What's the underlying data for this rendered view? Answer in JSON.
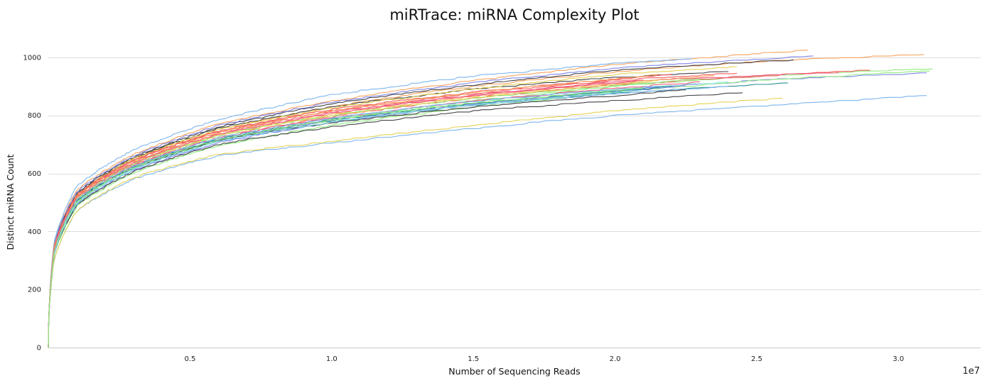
{
  "chart_data": {
    "type": "line",
    "title": "miRTrace: miRNA Complexity Plot",
    "xlabel": "Number of Sequencing Reads",
    "ylabel": "Distinct miRNA Count",
    "x_exponent_label": "1e7",
    "xlim": [
      0,
      32900000
    ],
    "ylim": [
      0,
      1100
    ],
    "x_ticks": [
      5000000,
      10000000,
      15000000,
      20000000,
      25000000,
      30000000
    ],
    "x_tick_labels": [
      "0.5",
      "1.0",
      "1.5",
      "2.0",
      "2.5",
      "3.0"
    ],
    "y_ticks": [
      0,
      200,
      400,
      600,
      800,
      1000
    ],
    "y_tick_labels": [
      "0",
      "200",
      "400",
      "600",
      "800",
      "1000"
    ],
    "grid": "horizontal",
    "legend": "none",
    "colors": {
      "gridline": "#dddddd",
      "axis": "#cccccc"
    },
    "series": [
      {
        "color": "#7cb5ec",
        "x": [
          0,
          200000,
          1000000,
          3000000,
          6000000,
          10000000,
          15000000,
          20000000,
          25000000,
          31000000
        ],
        "y": [
          0,
          300,
          470,
          580,
          660,
          705,
          755,
          800,
          830,
          868
        ]
      },
      {
        "color": "#f7a35c",
        "x": [
          0,
          200000,
          1000000,
          3000000,
          6000000,
          10000000,
          15000000,
          20000000,
          25000000,
          30900000
        ],
        "y": [
          0,
          340,
          520,
          650,
          750,
          830,
          900,
          950,
          985,
          1010
        ]
      },
      {
        "color": "#f7a35c",
        "x": [
          0,
          200000,
          1000000,
          3000000,
          6000000,
          10000000,
          15000000,
          20000000,
          26800000
        ],
        "y": [
          0,
          360,
          540,
          665,
          770,
          850,
          920,
          975,
          1025
        ]
      },
      {
        "color": "#434348",
        "x": [
          0,
          200000,
          1000000,
          3000000,
          6000000,
          10000000,
          15000000,
          20000000,
          26300000
        ],
        "y": [
          0,
          350,
          530,
          655,
          760,
          840,
          905,
          955,
          992
        ]
      },
      {
        "color": "#8085e9",
        "x": [
          0,
          200000,
          1000000,
          3000000,
          6000000,
          10000000,
          15000000,
          20000000,
          27000000
        ],
        "y": [
          0,
          355,
          535,
          660,
          765,
          845,
          912,
          962,
          1005
        ]
      },
      {
        "color": "#8085e9",
        "x": [
          0,
          200000,
          1000000,
          3000000,
          6000000,
          10000000,
          15000000,
          20000000,
          25000000,
          31000000
        ],
        "y": [
          0,
          320,
          490,
          610,
          705,
          775,
          840,
          885,
          920,
          945
        ]
      },
      {
        "color": "#90ed7d",
        "x": [
          0,
          200000,
          1000000,
          3000000,
          6000000,
          10000000,
          15000000,
          20000000,
          25000000,
          31200000
        ],
        "y": [
          0,
          320,
          495,
          615,
          712,
          785,
          850,
          900,
          935,
          960
        ]
      },
      {
        "color": "#90ed7d",
        "x": [
          0,
          200000,
          1000000,
          3000000,
          6000000,
          10000000,
          15000000,
          20000000,
          25000000,
          31100000
        ],
        "y": [
          0,
          315,
          485,
          600,
          695,
          765,
          828,
          880,
          920,
          952
        ]
      },
      {
        "color": "#e4d354",
        "x": [
          0,
          200000,
          1000000,
          3000000,
          6000000,
          10000000,
          15000000,
          20000000,
          25900000
        ],
        "y": [
          0,
          300,
          470,
          585,
          665,
          710,
          765,
          815,
          860
        ]
      },
      {
        "color": "#f45b5b",
        "x": [
          0,
          200000,
          1000000,
          3000000,
          6000000,
          10000000,
          15000000,
          20000000,
          25000000,
          29000000
        ],
        "y": [
          0,
          330,
          505,
          630,
          725,
          795,
          860,
          905,
          935,
          955
        ]
      },
      {
        "color": "#f15c80",
        "x": [
          0,
          200000,
          1000000,
          3000000,
          6000000,
          10000000,
          15000000,
          20000000,
          27900000
        ],
        "y": [
          0,
          340,
          520,
          640,
          740,
          810,
          870,
          915,
          948
        ]
      },
      {
        "color": "#7cb5ec",
        "x": [
          0,
          200000,
          1000000,
          3000000,
          6000000,
          10000000,
          15000000,
          20000000,
          22700000
        ],
        "y": [
          0,
          360,
          555,
          680,
          785,
          870,
          935,
          978,
          995
        ]
      },
      {
        "color": "#2b908f",
        "x": [
          0,
          200000,
          1000000,
          3000000,
          6000000,
          10000000,
          15000000,
          20000000,
          26100000
        ],
        "y": [
          0,
          325,
          500,
          620,
          715,
          780,
          835,
          875,
          910
        ]
      },
      {
        "color": "#434348",
        "x": [
          0,
          200000,
          1000000,
          3000000,
          6000000,
          10000000,
          15000000,
          20000000,
          24500000
        ],
        "y": [
          0,
          320,
          490,
          605,
          700,
          760,
          815,
          850,
          878
        ]
      },
      {
        "color": "#434348",
        "x": [
          0,
          200000,
          1000000,
          3000000,
          6000000,
          10000000,
          15000000,
          20000000,
          24000000
        ],
        "y": [
          0,
          345,
          528,
          650,
          755,
          830,
          890,
          930,
          950
        ]
      },
      {
        "color": "#91e8e1",
        "x": [
          0,
          200000,
          1000000,
          3000000,
          6000000,
          10000000,
          15000000,
          20000000,
          24000000
        ],
        "y": [
          0,
          330,
          505,
          625,
          725,
          790,
          848,
          890,
          915
        ]
      },
      {
        "color": "#e4d354",
        "x": [
          0,
          200000,
          1000000,
          3000000,
          6000000,
          10000000,
          15000000,
          20000000,
          24300000
        ],
        "y": [
          0,
          345,
          525,
          650,
          750,
          825,
          890,
          940,
          968
        ]
      },
      {
        "color": "#f45b5b",
        "x": [
          0,
          200000,
          1000000,
          3000000,
          6000000,
          10000000,
          15000000,
          20000000,
          24300000
        ],
        "y": [
          0,
          340,
          520,
          645,
          745,
          815,
          875,
          920,
          945
        ]
      },
      {
        "color": "#7cb5ec",
        "x": [
          0,
          200000,
          1000000,
          3000000,
          6000000,
          10000000,
          15000000,
          20000000,
          24000000
        ],
        "y": [
          0,
          320,
          495,
          612,
          710,
          775,
          835,
          875,
          900
        ]
      },
      {
        "color": "#f7a35c",
        "x": [
          0,
          200000,
          1000000,
          3000000,
          6000000,
          10000000,
          15000000,
          20000000,
          23500000
        ],
        "y": [
          0,
          335,
          512,
          635,
          735,
          805,
          865,
          910,
          935
        ]
      },
      {
        "color": "#90ed7d",
        "x": [
          0,
          200000,
          1000000,
          3000000,
          6000000,
          10000000,
          15000000,
          20000000,
          23000000
        ],
        "y": [
          0,
          335,
          512,
          632,
          730,
          800,
          858,
          902,
          925
        ]
      },
      {
        "color": "#f15c80",
        "x": [
          0,
          200000,
          1000000,
          3000000,
          6000000,
          10000000,
          15000000,
          20000000,
          23000000
        ],
        "y": [
          0,
          330,
          505,
          625,
          722,
          790,
          848,
          893,
          915
        ]
      },
      {
        "color": "#8085e9",
        "x": [
          0,
          200000,
          1000000,
          3000000,
          6000000,
          10000000,
          15000000,
          20000000,
          22500000
        ],
        "y": [
          0,
          325,
          500,
          618,
          715,
          782,
          838,
          882,
          902
        ]
      },
      {
        "color": "#434348",
        "x": [
          0,
          200000,
          1000000,
          3000000,
          6000000,
          10000000,
          15000000,
          20000000,
          22500000
        ],
        "y": [
          0,
          330,
          505,
          620,
          712,
          775,
          828,
          868,
          888
        ]
      },
      {
        "color": "#f45b5b",
        "x": [
          0,
          200000,
          1000000,
          3000000,
          6000000,
          10000000,
          15000000,
          20000000,
          22000000
        ],
        "y": [
          0,
          345,
          525,
          645,
          745,
          820,
          880,
          925,
          942
        ]
      },
      {
        "color": "#2b908f",
        "x": [
          0,
          200000,
          1000000,
          3000000,
          6000000,
          10000000,
          15000000,
          20000000,
          22000000
        ],
        "y": [
          0,
          330,
          505,
          622,
          718,
          785,
          840,
          882,
          900
        ]
      },
      {
        "color": "#e4d354",
        "x": [
          0,
          200000,
          1000000,
          3000000,
          6000000,
          10000000,
          15000000,
          20000000,
          21500000
        ],
        "y": [
          0,
          340,
          515,
          635,
          730,
          800,
          860,
          905,
          918
        ]
      },
      {
        "color": "#7cb5ec",
        "x": [
          0,
          200000,
          1000000,
          3000000,
          6000000,
          10000000,
          15000000,
          20000000,
          21500000
        ],
        "y": [
          0,
          335,
          510,
          625,
          720,
          790,
          848,
          888,
          900
        ]
      },
      {
        "color": "#f7a35c",
        "x": [
          0,
          200000,
          1000000,
          3000000,
          6000000,
          10000000,
          15000000,
          20000000,
          21500000
        ],
        "y": [
          0,
          340,
          518,
          640,
          740,
          815,
          878,
          925,
          940
        ]
      },
      {
        "color": "#91e8e1",
        "x": [
          0,
          200000,
          1000000,
          3000000,
          6000000,
          10000000,
          15000000,
          20000000,
          21000000
        ],
        "y": [
          0,
          325,
          498,
          615,
          710,
          778,
          835,
          878,
          888
        ]
      },
      {
        "color": "#f15c80",
        "x": [
          0,
          200000,
          1000000,
          3000000,
          6000000,
          10000000,
          15000000,
          20000000,
          21000000
        ],
        "y": [
          0,
          338,
          515,
          635,
          735,
          808,
          868,
          912,
          922
        ]
      },
      {
        "color": "#90ed7d",
        "x": [
          0,
          200000,
          1000000,
          3000000,
          6000000,
          10000000,
          15000000,
          20000000,
          21000000
        ],
        "y": [
          0,
          328,
          502,
          620,
          715,
          785,
          842,
          885,
          895
        ]
      }
    ]
  }
}
